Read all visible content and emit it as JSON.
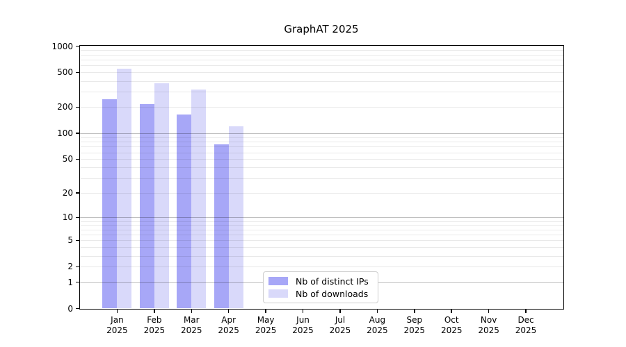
{
  "chart_data": {
    "type": "bar",
    "title": "GraphAT 2025",
    "categories": [
      "Jan",
      "Feb",
      "Mar",
      "Apr",
      "May",
      "Jun",
      "Jul",
      "Aug",
      "Sep",
      "Oct",
      "Nov",
      "Dec"
    ],
    "category_year": "2025",
    "series": [
      {
        "name": "Nb of distinct IPs",
        "color": "#a7a7f7",
        "values": [
          245,
          218,
          165,
          74,
          null,
          null,
          null,
          null,
          null,
          null,
          null,
          null
        ]
      },
      {
        "name": "Nb of downloads",
        "color": "#d9d9fa",
        "values": [
          550,
          375,
          320,
          120,
          null,
          null,
          null,
          null,
          null,
          null,
          null,
          null
        ]
      }
    ],
    "yticks": [
      0,
      1,
      2,
      5,
      10,
      20,
      50,
      100,
      200,
      500,
      1000
    ],
    "ylim": [
      0,
      1000
    ],
    "yscale": "log1p",
    "grid": "horizontal",
    "legend_position": "bottom-center"
  }
}
